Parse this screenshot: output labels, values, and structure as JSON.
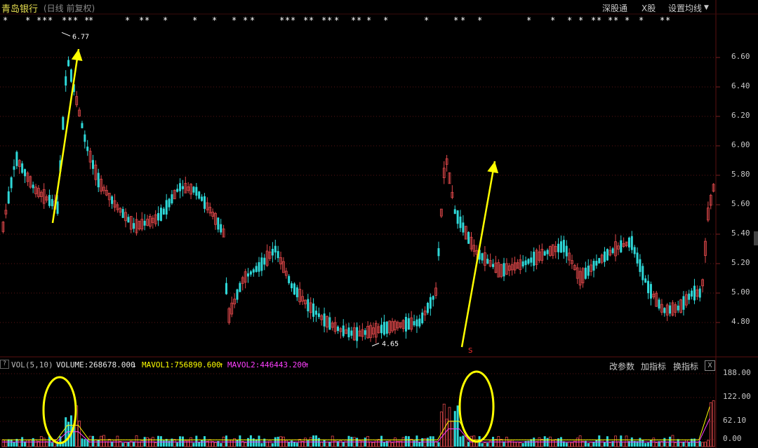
{
  "header": {
    "stock_name": "青岛银行",
    "period_info": "(日线 前复权)",
    "links": [
      "深股通",
      "X股",
      "设置均线"
    ]
  },
  "price_axis": {
    "ticks": [
      "6.60",
      "6.40",
      "6.20",
      "6.00",
      "5.80",
      "5.60",
      "5.40",
      "5.20",
      "5.00",
      "4.80"
    ],
    "max_label": "6.77",
    "min_label": "4.65"
  },
  "volume_panel": {
    "indicator": "VOL(5,10)",
    "volume_label": "VOLUME:268678.000",
    "mavol1_label": "MAVOL1:756890.600",
    "mavol2_label": "MAVOL2:446443.200",
    "buttons": [
      "改参数",
      "加指标",
      "换指标"
    ],
    "close_symbol": "X",
    "axis_ticks": [
      "188.00",
      "122.00",
      "62.10",
      "0.00"
    ]
  },
  "colors": {
    "up": "#e0484a",
    "down": "#2ed8d8",
    "axis_text": "#c8c8c8",
    "title": "#e8e050",
    "arrow": "#ffff00",
    "mavol1": "#ffff00",
    "mavol2": "#ff40ff"
  }
}
